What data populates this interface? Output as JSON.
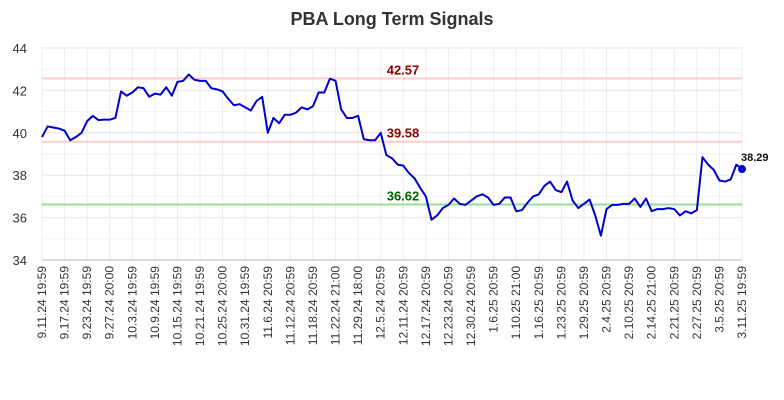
{
  "chart_data": {
    "type": "line",
    "title": "PBA Long Term Signals",
    "xlabel": "",
    "ylabel": "",
    "ylim": [
      34,
      44
    ],
    "yticks": [
      "34",
      "36",
      "38",
      "40",
      "42",
      "44"
    ],
    "xticks": [
      "9.11.24 19:59",
      "9.17.24 19:59",
      "9.23.24 19:59",
      "9.27.24 20:00",
      "10.3.24 19:59",
      "10.9.24 19:59",
      "10.15.24 19:59",
      "10.21.24 19:59",
      "10.25.24 20:00",
      "10.31.24 19:59",
      "11.6.24 20:59",
      "11.12.24 20:59",
      "11.18.24 20:59",
      "11.22.24 21:00",
      "11.29.24 18:00",
      "12.5.24 20:59",
      "12.11.24 20:59",
      "12.17.24 20:59",
      "12.23.24 20:59",
      "12.30.24 20:59",
      "1.6.25 20:59",
      "1.10.25 21:00",
      "1.16.25 20:59",
      "1.23.25 20:59",
      "1.29.25 20:59",
      "2.4.25 20:59",
      "2.10.25 20:59",
      "2.14.25 21:00",
      "2.21.25 20:59",
      "2.27.25 20:59",
      "3.5.25 20:59",
      "3.11.25 19:59"
    ],
    "grid": true,
    "series": [
      {
        "color": "#0000cc",
        "values": [
          39.8,
          40.3,
          40.25,
          40.2,
          40.1,
          39.65,
          39.8,
          40.0,
          40.55,
          40.8,
          40.6,
          40.62,
          40.62,
          40.7,
          41.95,
          41.75,
          41.9,
          42.15,
          42.1,
          41.7,
          41.85,
          41.8,
          42.15,
          41.75,
          42.4,
          42.45,
          42.75,
          42.5,
          42.45,
          42.45,
          42.1,
          42.05,
          41.95,
          41.6,
          41.3,
          41.35,
          41.2,
          41.05,
          41.5,
          41.7,
          40.0,
          40.7,
          40.45,
          40.85,
          40.85,
          40.95,
          41.2,
          41.1,
          41.25,
          41.9,
          41.9,
          42.55,
          42.45,
          41.1,
          40.7,
          40.7,
          40.8,
          39.7,
          39.65,
          39.65,
          40.0,
          38.95,
          38.8,
          38.5,
          38.45,
          38.1,
          37.85,
          37.4,
          37.0,
          35.9,
          36.1,
          36.45,
          36.6,
          36.9,
          36.65,
          36.6,
          36.8,
          37.0,
          37.1,
          36.95,
          36.6,
          36.65,
          36.95,
          36.95,
          36.3,
          36.35,
          36.7,
          37.0,
          37.1,
          37.5,
          37.7,
          37.3,
          37.2,
          37.7,
          36.8,
          36.45,
          36.65,
          36.85,
          36.1,
          35.15,
          36.4,
          36.6,
          36.6,
          36.65,
          36.65,
          36.9,
          36.5,
          36.9,
          36.3,
          36.4,
          36.4,
          36.45,
          36.4,
          36.1,
          36.3,
          36.2,
          36.35,
          38.85,
          38.5,
          38.25,
          37.75,
          37.7,
          37.8,
          38.5,
          38.29
        ]
      }
    ],
    "levels": [
      {
        "value": 42.57,
        "label": "42.57",
        "line_color": "#ffcccc",
        "text_color": "#8b0000"
      },
      {
        "value": 39.58,
        "label": "39.58",
        "line_color": "#ffcccc",
        "text_color": "#8b0000"
      },
      {
        "value": 36.62,
        "label": "36.62",
        "line_color": "#99dd99",
        "text_color": "#006400"
      }
    ],
    "last_point": {
      "value": 38.29,
      "label": "38.29",
      "color": "#0000cc"
    }
  }
}
